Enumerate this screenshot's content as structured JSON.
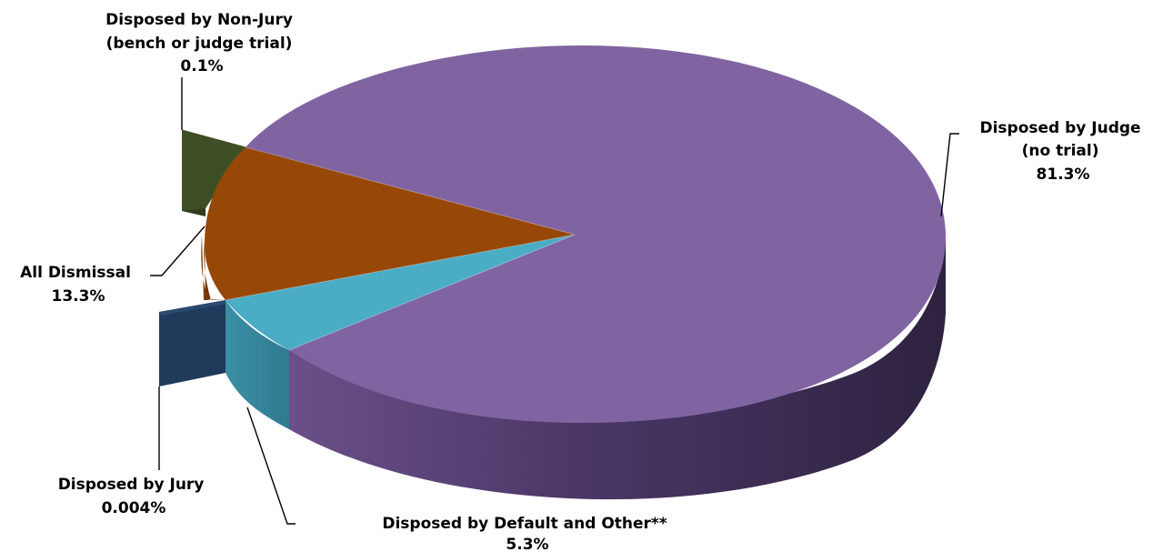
{
  "chart_data": {
    "type": "pie",
    "title": "",
    "style": "3d-exploded",
    "slices": [
      {
        "key": "judge",
        "label_lines": [
          "Disposed by Judge",
          "(no trial)"
        ],
        "value_label": "81.3%",
        "value": 81.3,
        "color": "#8064A2",
        "exploded": false
      },
      {
        "key": "default",
        "label_lines": [
          "Disposed by Default and Other**"
        ],
        "value_label": "5.3%",
        "value": 5.3,
        "color": "#4BACC6",
        "exploded": false
      },
      {
        "key": "jury",
        "label_lines": [
          "Disposed by Jury"
        ],
        "value_label": "0.004%",
        "value": 0.004,
        "color": "#1F3A5A",
        "exploded": true
      },
      {
        "key": "dismissal",
        "label_lines": [
          "All Dismissal"
        ],
        "value_label": "13.3%",
        "value": 13.3,
        "color": "#974706",
        "exploded": false
      },
      {
        "key": "nonjury",
        "label_lines": [
          "Disposed by Non-Jury",
          "(bench or judge trial)"
        ],
        "value_label": "0.1%",
        "value": 0.1,
        "color": "#3F4F25",
        "exploded": true
      }
    ]
  }
}
